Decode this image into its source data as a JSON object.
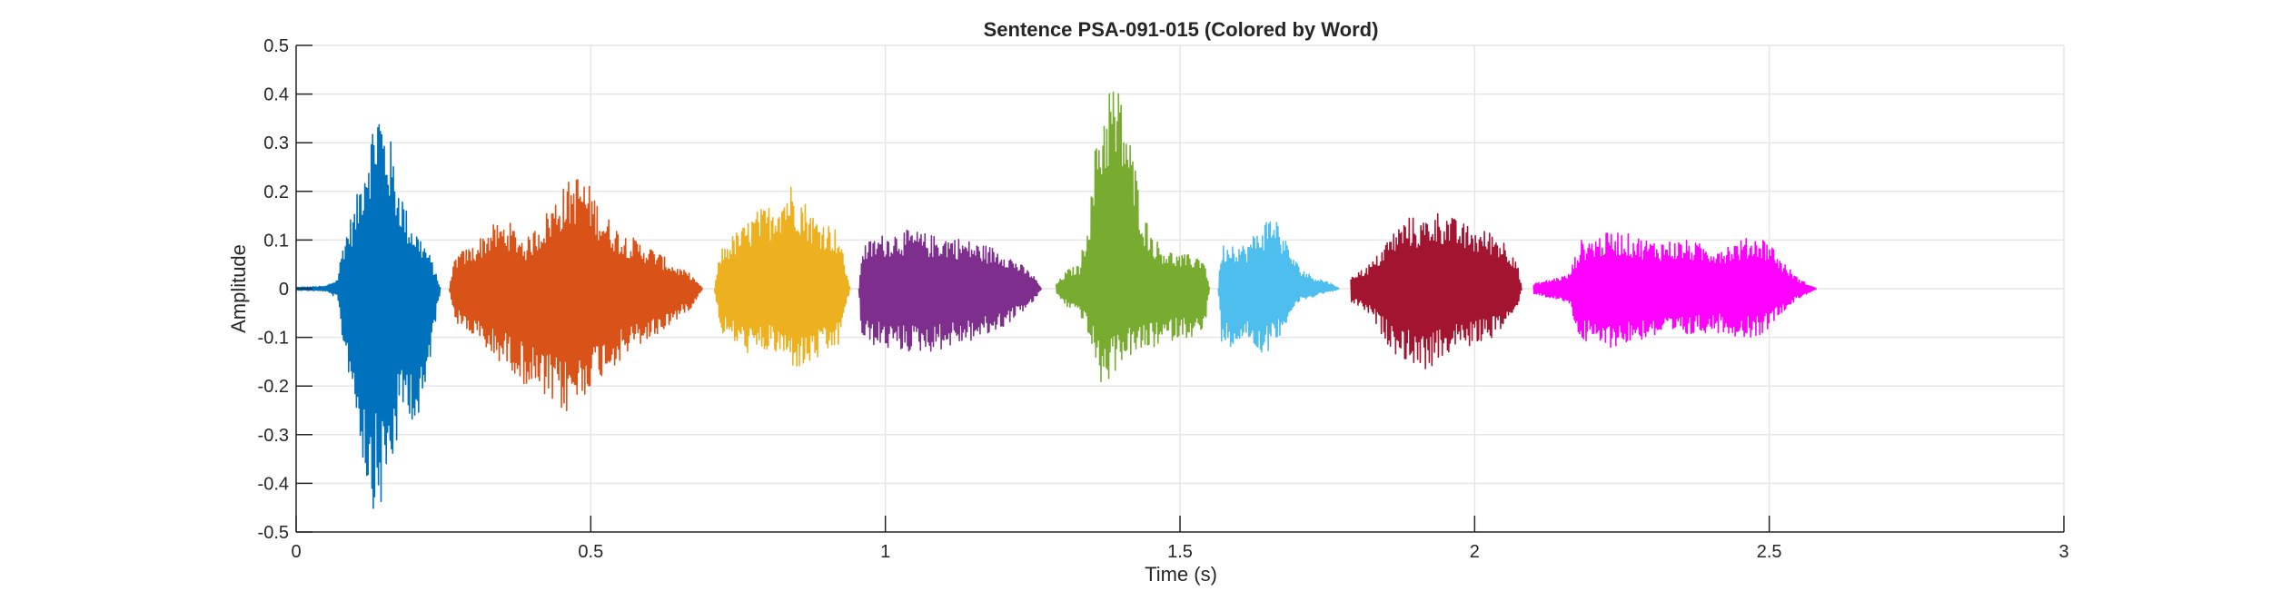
{
  "chart_data": {
    "type": "line",
    "title": "Sentence PSA-091-015 (Colored by Word)",
    "xlabel": "Time (s)",
    "ylabel": "Amplitude",
    "xlim": [
      0,
      3
    ],
    "ylim": [
      -0.5,
      0.5
    ],
    "grid": true,
    "legend": "none",
    "xticks": [
      0,
      0.5,
      1,
      1.5,
      2,
      2.5,
      3
    ],
    "xtick_labels": [
      "0",
      "0.5",
      "1",
      "1.5",
      "2",
      "2.5",
      "3"
    ],
    "yticks": [
      -0.5,
      -0.4,
      -0.3,
      -0.2,
      -0.1,
      0,
      0.1,
      0.2,
      0.3,
      0.4,
      0.5
    ],
    "ytick_labels": [
      "-0.5",
      "-0.4",
      "-0.3",
      "-0.2",
      "-0.1",
      "0",
      "0.1",
      "0.2",
      "0.3",
      "0.4",
      "0.5"
    ],
    "series": [
      {
        "color": "#0072BD",
        "x": [
          0.0,
          0.05,
          0.07,
          0.08,
          0.09,
          0.1,
          0.11,
          0.12,
          0.13,
          0.14,
          0.15,
          0.16,
          0.17,
          0.18,
          0.19,
          0.2,
          0.21,
          0.22,
          0.23,
          0.245
        ],
        "max": [
          0.003,
          0.005,
          0.02,
          0.1,
          0.14,
          0.17,
          0.24,
          0.31,
          0.35,
          0.4,
          0.34,
          0.31,
          0.24,
          0.2,
          0.15,
          0.13,
          0.11,
          0.09,
          0.06,
          0.0
        ],
        "min": [
          -0.003,
          -0.005,
          -0.02,
          -0.12,
          -0.18,
          -0.25,
          -0.33,
          -0.41,
          -0.45,
          -0.47,
          -0.43,
          -0.39,
          -0.33,
          -0.27,
          -0.25,
          -0.28,
          -0.3,
          -0.22,
          -0.12,
          0.0
        ]
      },
      {
        "color": "#D95319",
        "x": [
          0.26,
          0.27,
          0.3,
          0.33,
          0.36,
          0.39,
          0.42,
          0.44,
          0.46,
          0.48,
          0.5,
          0.52,
          0.55,
          0.58,
          0.61,
          0.64,
          0.67,
          0.69
        ],
        "max": [
          0.0,
          0.07,
          0.09,
          0.13,
          0.14,
          0.1,
          0.15,
          0.19,
          0.22,
          0.24,
          0.21,
          0.16,
          0.12,
          0.1,
          0.08,
          0.05,
          0.03,
          0.0
        ],
        "min": [
          0.0,
          -0.07,
          -0.1,
          -0.14,
          -0.16,
          -0.2,
          -0.23,
          -0.25,
          -0.26,
          -0.24,
          -0.2,
          -0.18,
          -0.15,
          -0.12,
          -0.1,
          -0.07,
          -0.04,
          0.0
        ]
      },
      {
        "color": "#EDB120",
        "x": [
          0.71,
          0.72,
          0.74,
          0.76,
          0.78,
          0.8,
          0.82,
          0.84,
          0.86,
          0.88,
          0.9,
          0.92,
          0.94
        ],
        "max": [
          0.0,
          0.08,
          0.11,
          0.13,
          0.16,
          0.17,
          0.2,
          0.22,
          0.19,
          0.15,
          0.14,
          0.12,
          0.0
        ],
        "min": [
          0.0,
          -0.09,
          -0.11,
          -0.13,
          -0.14,
          -0.13,
          -0.14,
          -0.16,
          -0.17,
          -0.15,
          -0.14,
          -0.12,
          0.0
        ]
      },
      {
        "color": "#7E2F8E",
        "x": [
          0.955,
          0.96,
          0.99,
          1.02,
          1.05,
          1.08,
          1.11,
          1.14,
          1.17,
          1.2,
          1.23,
          1.25,
          1.265
        ],
        "max": [
          0.0,
          0.09,
          0.11,
          0.12,
          0.12,
          0.11,
          0.11,
          0.1,
          0.09,
          0.08,
          0.05,
          0.03,
          0.0
        ],
        "min": [
          0.0,
          -0.11,
          -0.12,
          -0.13,
          -0.13,
          -0.13,
          -0.12,
          -0.11,
          -0.1,
          -0.08,
          -0.05,
          -0.03,
          0.0
        ]
      },
      {
        "color": "#77AC30",
        "x": [
          1.29,
          1.31,
          1.33,
          1.35,
          1.36,
          1.37,
          1.38,
          1.39,
          1.4,
          1.41,
          1.42,
          1.44,
          1.46,
          1.48,
          1.5,
          1.52,
          1.54,
          1.55
        ],
        "max": [
          0.01,
          0.04,
          0.05,
          0.2,
          0.35,
          0.38,
          0.44,
          0.42,
          0.41,
          0.35,
          0.28,
          0.15,
          0.1,
          0.08,
          0.07,
          0.07,
          0.07,
          0.0
        ],
        "min": [
          -0.01,
          -0.04,
          -0.05,
          -0.12,
          -0.18,
          -0.21,
          -0.19,
          -0.17,
          -0.15,
          -0.14,
          -0.14,
          -0.13,
          -0.12,
          -0.11,
          -0.1,
          -0.1,
          -0.1,
          0.0
        ]
      },
      {
        "color": "#4DBEEE",
        "x": [
          1.565,
          1.57,
          1.59,
          1.61,
          1.63,
          1.65,
          1.66,
          1.68,
          1.7,
          1.72,
          1.74,
          1.76,
          1.77
        ],
        "max": [
          0.0,
          0.09,
          0.1,
          0.09,
          0.12,
          0.15,
          0.16,
          0.1,
          0.05,
          0.03,
          0.02,
          0.01,
          0.0
        ],
        "min": [
          0.0,
          -0.11,
          -0.12,
          -0.1,
          -0.13,
          -0.13,
          -0.12,
          -0.07,
          -0.03,
          -0.02,
          -0.01,
          -0.005,
          0.0
        ]
      },
      {
        "color": "#A2142F",
        "x": [
          1.79,
          1.81,
          1.83,
          1.85,
          1.87,
          1.89,
          1.91,
          1.93,
          1.95,
          1.97,
          1.99,
          2.01,
          2.03,
          2.05,
          2.07,
          2.08
        ],
        "max": [
          0.03,
          0.04,
          0.06,
          0.1,
          0.13,
          0.15,
          0.14,
          0.16,
          0.16,
          0.14,
          0.13,
          0.12,
          0.12,
          0.1,
          0.07,
          0.0
        ],
        "min": [
          -0.03,
          -0.04,
          -0.07,
          -0.11,
          -0.14,
          -0.15,
          -0.17,
          -0.16,
          -0.14,
          -0.12,
          -0.12,
          -0.11,
          -0.1,
          -0.08,
          -0.05,
          0.0
        ]
      },
      {
        "color": "#FF00FF",
        "x": [
          2.1,
          2.13,
          2.16,
          2.18,
          2.21,
          2.24,
          2.27,
          2.3,
          2.33,
          2.36,
          2.39,
          2.42,
          2.45,
          2.48,
          2.5,
          2.52,
          2.55,
          2.58
        ],
        "max": [
          0.01,
          0.02,
          0.03,
          0.1,
          0.11,
          0.12,
          0.11,
          0.1,
          0.1,
          0.1,
          0.09,
          0.09,
          0.1,
          0.11,
          0.1,
          0.06,
          0.02,
          0.0
        ],
        "min": [
          -0.01,
          -0.02,
          -0.03,
          -0.11,
          -0.12,
          -0.12,
          -0.11,
          -0.1,
          -0.1,
          -0.1,
          -0.09,
          -0.09,
          -0.1,
          -0.1,
          -0.08,
          -0.05,
          -0.02,
          0.0
        ]
      }
    ]
  }
}
